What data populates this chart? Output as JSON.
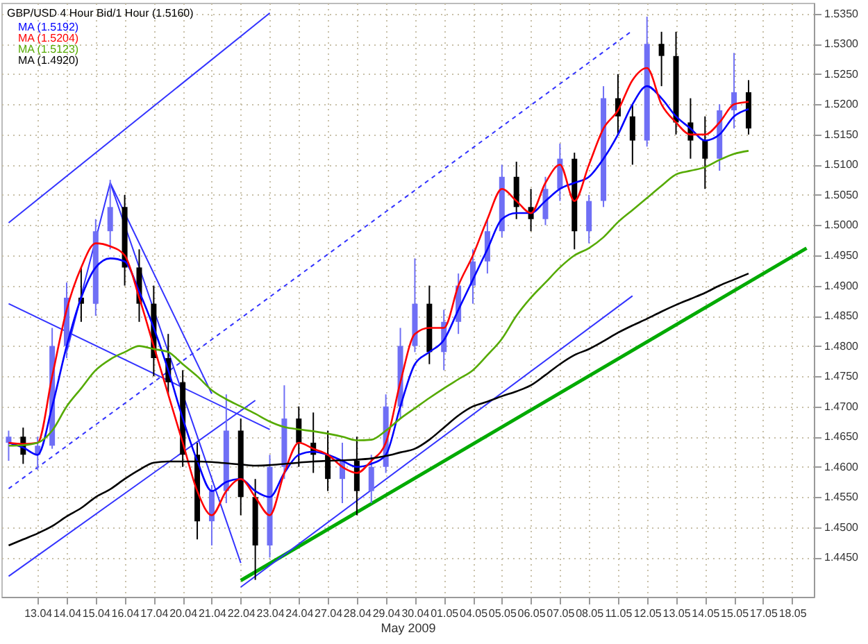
{
  "chart_data": {
    "type": "candlestick",
    "title": "GBP/USD 4 Hour Bid/1 Hour (1.5160)",
    "xlabel": "May 2009",
    "categories": [
      null,
      null,
      "13.04",
      null,
      "14.04",
      null,
      "15.04",
      null,
      "16.04",
      null,
      "17.04",
      null,
      "20.04",
      null,
      "21.04",
      null,
      "22.04",
      null,
      "23.04",
      null,
      "24.04",
      null,
      "27.04",
      null,
      "28.04",
      null,
      "29.04",
      null,
      "30.04",
      null,
      "01.05",
      null,
      "04.05",
      null,
      "05.05",
      null,
      "06.05",
      null,
      "07.05",
      null,
      "08.05",
      null,
      "11.05",
      null,
      "12.05",
      null,
      "13.05",
      null,
      "14.05",
      null,
      "15.05",
      null,
      "17.05",
      null,
      "18.05",
      null
    ],
    "ohlc": [
      [
        1.464,
        1.466,
        1.461,
        1.465
      ],
      [
        1.465,
        1.4665,
        1.4605,
        1.462
      ],
      [
        1.462,
        1.465,
        1.4595,
        1.4635
      ],
      [
        1.4635,
        1.483,
        1.463,
        1.48
      ],
      [
        1.48,
        1.4905,
        1.478,
        1.488
      ],
      [
        1.488,
        1.493,
        1.484,
        1.487
      ],
      [
        1.487,
        1.501,
        1.485,
        1.499
      ],
      [
        1.499,
        1.5075,
        1.496,
        1.503
      ],
      [
        1.503,
        1.505,
        1.49,
        1.493
      ],
      [
        1.493,
        1.496,
        1.484,
        1.487
      ],
      [
        1.487,
        1.49,
        1.475,
        1.478
      ],
      [
        1.478,
        1.482,
        1.472,
        1.474
      ],
      [
        1.474,
        1.476,
        1.46,
        1.462
      ],
      [
        1.462,
        1.464,
        1.448,
        1.451
      ],
      [
        1.451,
        1.457,
        1.447,
        1.456
      ],
      [
        1.456,
        1.472,
        1.454,
        1.466
      ],
      [
        1.466,
        1.468,
        1.452,
        1.455
      ],
      [
        1.455,
        1.458,
        1.4413,
        1.447
      ],
      [
        1.447,
        1.462,
        1.445,
        1.46
      ],
      [
        1.46,
        1.4735,
        1.458,
        1.468
      ],
      [
        1.468,
        1.47,
        1.46,
        1.464
      ],
      [
        1.464,
        1.469,
        1.459,
        1.462
      ],
      [
        1.462,
        1.466,
        1.456,
        1.458
      ],
      [
        1.458,
        1.464,
        1.454,
        1.461
      ],
      [
        1.461,
        1.465,
        1.452,
        1.456
      ],
      [
        1.456,
        1.462,
        1.454,
        1.46
      ],
      [
        1.46,
        1.472,
        1.459,
        1.47
      ],
      [
        1.47,
        1.483,
        1.468,
        1.48
      ],
      [
        1.48,
        1.4945,
        1.479,
        1.487
      ],
      [
        1.487,
        1.49,
        1.477,
        1.479
      ],
      [
        1.479,
        1.486,
        1.476,
        1.484
      ],
      [
        1.484,
        1.492,
        1.482,
        1.49
      ],
      [
        1.49,
        1.496,
        1.487,
        1.494
      ],
      [
        1.494,
        1.501,
        1.492,
        1.499
      ],
      [
        1.499,
        1.51,
        1.498,
        1.508
      ],
      [
        1.508,
        1.5105,
        1.501,
        1.503
      ],
      [
        1.503,
        1.506,
        1.499,
        1.501
      ],
      [
        1.501,
        1.508,
        1.5,
        1.506
      ],
      [
        1.506,
        1.5135,
        1.504,
        1.511
      ],
      [
        1.511,
        1.512,
        1.496,
        1.499
      ],
      [
        1.499,
        1.505,
        1.497,
        1.504
      ],
      [
        1.504,
        1.523,
        1.503,
        1.521
      ],
      [
        1.521,
        1.525,
        1.515,
        1.518
      ],
      [
        1.518,
        1.52,
        1.51,
        1.514
      ],
      [
        1.514,
        1.5345,
        1.513,
        1.53
      ],
      [
        1.53,
        1.532,
        1.523,
        1.528
      ],
      [
        1.528,
        1.532,
        1.515,
        1.517
      ],
      [
        1.517,
        1.521,
        1.511,
        1.514
      ],
      [
        1.514,
        1.518,
        1.506,
        1.511
      ],
      [
        1.511,
        1.52,
        1.509,
        1.519
      ],
      [
        1.519,
        1.5285,
        1.516,
        1.522
      ],
      [
        1.522,
        1.524,
        1.515,
        1.516
      ],
      null,
      null,
      null,
      null
    ],
    "colors": [
      "#6f6ff5",
      "#000000",
      "#6f6ff5",
      "#6f6ff5",
      "#6f6ff5",
      "#000000",
      "#6f6ff5",
      "#6f6ff5",
      "#000000",
      "#000000",
      "#000000",
      "#000000",
      "#000000",
      "#000000",
      "#6f6ff5",
      "#6f6ff5",
      "#000000",
      "#000000",
      "#6f6ff5",
      "#6f6ff5",
      "#000000",
      "#000000",
      "#000000",
      "#6f6ff5",
      "#000000",
      "#6f6ff5",
      "#6f6ff5",
      "#6f6ff5",
      "#6f6ff5",
      "#000000",
      "#6f6ff5",
      "#6f6ff5",
      "#6f6ff5",
      "#6f6ff5",
      "#6f6ff5",
      "#000000",
      "#000000",
      "#6f6ff5",
      "#6f6ff5",
      "#000000",
      "#6f6ff5",
      "#6f6ff5",
      "#000000",
      "#000000",
      "#6f6ff5",
      "#000000",
      "#000000",
      "#000000",
      "#000000",
      "#6f6ff5",
      "#6f6ff5",
      "#000000",
      null,
      null,
      null,
      null
    ],
    "series": [
      {
        "type": "line",
        "name": "MA (1.5192)",
        "color": "#0000ff",
        "values": [
          1.464,
          1.4632,
          1.462,
          1.47,
          1.48,
          1.488,
          1.493,
          1.4945,
          1.494,
          1.489,
          1.483,
          1.476,
          1.468,
          1.461,
          1.456,
          1.4575,
          1.458,
          1.456,
          1.455,
          1.459,
          1.462,
          1.4625,
          1.462,
          1.461,
          1.46,
          1.4605,
          1.462,
          1.47,
          1.477,
          1.479,
          1.481,
          1.486,
          1.491,
          1.496,
          1.501,
          1.502,
          1.502,
          1.504,
          1.506,
          1.507,
          1.508,
          1.511,
          1.515,
          1.52,
          1.523,
          1.521,
          1.518,
          1.516,
          1.514,
          1.515,
          1.518,
          1.5192,
          null,
          null,
          null,
          null
        ]
      },
      {
        "type": "line",
        "name": "MA (1.5204)",
        "color": "#ff0000",
        "values": [
          1.464,
          1.4638,
          1.464,
          1.475,
          1.486,
          1.493,
          1.497,
          1.4965,
          1.495,
          1.488,
          1.48,
          1.472,
          1.464,
          1.456,
          1.452,
          1.456,
          1.458,
          1.455,
          1.452,
          1.459,
          1.464,
          1.463,
          1.462,
          1.46,
          1.459,
          1.461,
          1.464,
          1.474,
          1.482,
          1.483,
          1.483,
          1.49,
          1.495,
          1.501,
          1.506,
          1.504,
          1.502,
          1.507,
          1.51,
          1.504,
          1.51,
          1.516,
          1.519,
          1.524,
          1.526,
          1.52,
          1.517,
          1.515,
          1.515,
          1.517,
          1.52,
          1.5204,
          null,
          null,
          null,
          null
        ]
      },
      {
        "type": "line",
        "name": "MA (1.5123)",
        "color": "#55aa00",
        "values": [
          1.4635,
          1.4636,
          1.464,
          1.466,
          1.47,
          1.473,
          1.476,
          1.4778,
          1.479,
          1.48,
          1.4795,
          1.479,
          1.477,
          1.475,
          1.4727,
          1.4712,
          1.47,
          1.4688,
          1.4675,
          1.4666,
          1.4662,
          1.4659,
          1.4655,
          1.465,
          1.4644,
          1.4645,
          1.466,
          1.468,
          1.4697,
          1.4714,
          1.473,
          1.4745,
          1.476,
          1.4785,
          1.4812,
          1.485,
          1.488,
          1.4905,
          1.493,
          1.495,
          1.4962,
          1.498,
          1.5005,
          1.5025,
          1.5045,
          1.5065,
          1.5084,
          1.509,
          1.5096,
          1.5108,
          1.5118,
          1.5123,
          null,
          null,
          null,
          null
        ]
      },
      {
        "type": "line",
        "name": "MA (1.4920)",
        "color": "#000000",
        "values": [
          1.447,
          1.448,
          1.449,
          1.4502,
          1.4518,
          1.4532,
          1.455,
          1.4563,
          1.458,
          1.4595,
          1.4607,
          1.4609,
          1.4609,
          1.4609,
          1.4608,
          1.4606,
          1.4604,
          1.4602,
          1.4603,
          1.4605,
          1.4607,
          1.4609,
          1.461,
          1.4611,
          1.4612,
          1.4614,
          1.4618,
          1.4624,
          1.463,
          1.4645,
          1.4665,
          1.4685,
          1.47,
          1.4708,
          1.4717,
          1.4725,
          1.4735,
          1.4752,
          1.477,
          1.4785,
          1.4795,
          1.4808,
          1.4822,
          1.4834,
          1.4845,
          1.4857,
          1.4868,
          1.4878,
          1.4888,
          1.49,
          1.491,
          1.492,
          null,
          null,
          null,
          null
        ]
      },
      {
        "type": "line",
        "color": "#00aa00",
        "values": [
          null,
          null,
          null,
          null,
          null,
          null,
          null,
          null,
          null,
          null,
          null,
          null,
          null,
          null,
          null,
          null,
          1.4412,
          null,
          null,
          null,
          null,
          null,
          null,
          null,
          null,
          null,
          null,
          null,
          null,
          null,
          null,
          null,
          null,
          null,
          null,
          null,
          null,
          null,
          null,
          null,
          null,
          null,
          null,
          null,
          null,
          null,
          null,
          null,
          null,
          null,
          null,
          null,
          null,
          null,
          null,
          1.4962
        ]
      },
      {
        "type": "line",
        "color": "#3333ff",
        "values": [
          1.5004,
          null,
          null,
          null,
          null,
          null,
          null,
          null,
          null,
          null,
          null,
          null,
          null,
          null,
          null,
          null,
          null,
          null,
          1.5351,
          null,
          null,
          null,
          null,
          null,
          null,
          null,
          null,
          null,
          null,
          null,
          null,
          null,
          null,
          null,
          null,
          null,
          null,
          null,
          null,
          null,
          null,
          null,
          null,
          null,
          null,
          null,
          null,
          null,
          null,
          null,
          null,
          null,
          null,
          null,
          null,
          null
        ]
      },
      {
        "type": "line",
        "color": "#3333ff",
        "values": [
          1.4419,
          null,
          null,
          null,
          null,
          null,
          null,
          null,
          null,
          null,
          null,
          null,
          null,
          null,
          null,
          null,
          null,
          1.471,
          null,
          null,
          null,
          null,
          null,
          null,
          null,
          null,
          null,
          null,
          null,
          null,
          null,
          null,
          null,
          null,
          null,
          null,
          null,
          null,
          null,
          null,
          null,
          null,
          null,
          null,
          null,
          null,
          null,
          null,
          null,
          null,
          null,
          null,
          null,
          null,
          null,
          null
        ]
      },
      {
        "type": "line",
        "color": "#3333ff",
        "line_style": "dashed",
        "values": [
          1.4564,
          null,
          null,
          null,
          null,
          null,
          null,
          null,
          null,
          null,
          null,
          null,
          null,
          null,
          null,
          null,
          null,
          null,
          null,
          null,
          null,
          null,
          null,
          null,
          null,
          null,
          null,
          null,
          null,
          null,
          null,
          null,
          null,
          null,
          null,
          null,
          null,
          null,
          null,
          null,
          null,
          null,
          null,
          1.5322,
          null,
          null,
          null,
          null,
          null,
          null,
          null,
          null,
          null,
          null,
          null,
          null
        ]
      },
      {
        "type": "line",
        "color": "#3333ff",
        "values": [
          1.487,
          null,
          null,
          null,
          null,
          null,
          null,
          null,
          null,
          null,
          null,
          null,
          null,
          null,
          null,
          null,
          null,
          null,
          1.4662,
          null,
          null,
          null,
          null,
          null,
          null,
          null,
          null,
          null,
          null,
          null,
          null,
          null,
          null,
          null,
          null,
          null,
          null,
          null,
          null,
          null,
          null,
          null,
          null,
          null,
          null,
          null,
          null,
          null,
          null,
          null,
          null,
          null,
          null,
          null,
          null,
          null
        ]
      },
      {
        "type": "line",
        "color": "#3333ff",
        "values": [
          null,
          null,
          null,
          null,
          1.479,
          null,
          null,
          1.507,
          null,
          null,
          null,
          null,
          null,
          null,
          null,
          null,
          1.4441,
          null,
          null,
          null,
          null,
          null,
          null,
          null,
          null,
          null,
          null,
          null,
          null,
          null,
          null,
          null,
          null,
          null,
          null,
          null,
          null,
          null,
          null,
          null,
          null,
          null,
          null,
          null,
          null,
          null,
          null,
          null,
          null,
          null,
          null,
          null,
          null,
          null,
          null,
          null
        ]
      },
      {
        "type": "line",
        "color": "#3333ff",
        "values": [
          null,
          null,
          null,
          null,
          null,
          null,
          null,
          1.507,
          null,
          null,
          null,
          null,
          null,
          null,
          1.4721,
          null,
          null,
          null,
          null,
          null,
          null,
          null,
          null,
          null,
          null,
          null,
          null,
          null,
          null,
          null,
          null,
          null,
          null,
          null,
          null,
          null,
          null,
          null,
          null,
          null,
          null,
          null,
          null,
          null,
          null,
          null,
          null,
          null,
          null,
          null,
          null,
          null,
          null,
          null,
          null,
          null
        ]
      },
      {
        "type": "line",
        "color": "#3333ff",
        "values": [
          null,
          null,
          null,
          null,
          null,
          null,
          null,
          null,
          null,
          null,
          null,
          null,
          null,
          null,
          null,
          null,
          1.4401,
          null,
          null,
          null,
          null,
          null,
          null,
          null,
          null,
          null,
          null,
          null,
          null,
          null,
          null,
          null,
          null,
          null,
          null,
          null,
          null,
          null,
          null,
          null,
          null,
          null,
          null,
          1.4883,
          null,
          null,
          null,
          null,
          null,
          null,
          null,
          null,
          null,
          null,
          null,
          null
        ]
      }
    ],
    "ylim": [
      1.4385,
      1.5368
    ],
    "yticks": [
      {
        "value": 1.445,
        "label": "1.4450"
      },
      {
        "value": 1.45,
        "label": "1.4500"
      },
      {
        "value": 1.455,
        "label": "1.4550"
      },
      {
        "value": 1.46,
        "label": "1.4600"
      },
      {
        "value": 1.465,
        "label": "1.4650"
      },
      {
        "value": 1.47,
        "label": "1.4700"
      },
      {
        "value": 1.475,
        "label": "1.4750"
      },
      {
        "value": 1.48,
        "label": "1.4800"
      },
      {
        "value": 1.485,
        "label": "1.4850"
      },
      {
        "value": 1.49,
        "label": "1.4900"
      },
      {
        "value": 1.495,
        "label": "1.4950"
      },
      {
        "value": 1.5,
        "label": "1.5000"
      },
      {
        "value": 1.505,
        "label": "1.5050"
      },
      {
        "value": 1.51,
        "label": "1.5100"
      },
      {
        "value": 1.515,
        "label": "1.5150"
      },
      {
        "value": 1.52,
        "label": "1.5200"
      },
      {
        "value": 1.525,
        "label": "1.5250"
      },
      {
        "value": 1.53,
        "label": "1.5300"
      },
      {
        "value": 1.535,
        "label": "1.5350"
      }
    ],
    "grid": true,
    "legend": "top left"
  }
}
